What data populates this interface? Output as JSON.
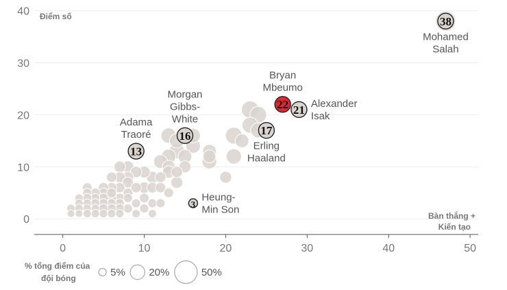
{
  "chart_data": {
    "type": "scatter",
    "ylabel": "Điểm số",
    "xlabel_line1": "Bàn thắng +",
    "xlabel_line2": "Kiến tạo",
    "xlim": [
      -3.5,
      51
    ],
    "ylim": [
      -3,
      41
    ],
    "x_ticks": [
      0,
      10,
      20,
      30,
      40,
      50
    ],
    "y_ticks": [
      0,
      10,
      20,
      30,
      40
    ],
    "colors": {
      "bubble_fill": "#d9d4ce",
      "bubble_stroke": "#ffffff",
      "highlight_red": "#e0262f",
      "label_text": "#555555",
      "axis_text": "#777777",
      "axis_line": "#555555",
      "grid": "#eeeeee"
    },
    "size_legend": {
      "title_line1": "% tổng điểm của",
      "title_line2": "đội bóng",
      "items": [
        {
          "label": "5%",
          "share": 5
        },
        {
          "label": "20%",
          "share": 20
        },
        {
          "label": "50%",
          "share": 50
        }
      ]
    },
    "highlighted": [
      {
        "name": "Mohamed Salah",
        "name_lines": [
          "Mohamed",
          "Salah"
        ],
        "x": 47,
        "y": 38,
        "score": "38",
        "share": 33,
        "color": "#d9d4ce",
        "label_pos": "below"
      },
      {
        "name": "Bryan Mbeumo",
        "name_lines": [
          "Bryan",
          "Mbeumo"
        ],
        "x": 27,
        "y": 22,
        "score": "22",
        "share": 28,
        "color": "#e0262f",
        "label_pos": "above"
      },
      {
        "name": "Alexander Isak",
        "name_lines": [
          "Alexander",
          "Isak"
        ],
        "x": 29,
        "y": 21,
        "score": "21",
        "share": 24,
        "color": "#d9d4ce",
        "label_pos": "right"
      },
      {
        "name": "Erling Haaland",
        "name_lines": [
          "Erling",
          "Haaland"
        ],
        "x": 25,
        "y": 17,
        "score": "17",
        "share": 20,
        "color": "#d9d4ce",
        "label_pos": "below"
      },
      {
        "name": "Morgan Gibbs-White",
        "name_lines": [
          "Morgan",
          "Gibbs-",
          "White"
        ],
        "x": 15,
        "y": 16,
        "score": "16",
        "share": 20,
        "color": "#d9d4ce",
        "label_pos": "above"
      },
      {
        "name": "Adama Traoré",
        "name_lines": [
          "Adama",
          "Traoré"
        ],
        "x": 9,
        "y": 13,
        "score": "13",
        "share": 20,
        "color": "#d9d4ce",
        "label_pos": "above"
      },
      {
        "name": "Heung-Min Son",
        "name_lines": [
          "Heung-",
          "Min Son"
        ],
        "x": 16,
        "y": 3,
        "score": "3",
        "share": 6,
        "color": "#d9d4ce",
        "label_pos": "right"
      }
    ],
    "others": [
      {
        "x": 47,
        "y": 38,
        "share": 33
      },
      {
        "x": 23,
        "y": 21,
        "share": 24
      },
      {
        "x": 24,
        "y": 20,
        "share": 22
      },
      {
        "x": 23,
        "y": 18,
        "share": 20
      },
      {
        "x": 24,
        "y": 17,
        "share": 18
      },
      {
        "x": 21,
        "y": 16,
        "share": 22
      },
      {
        "x": 21,
        "y": 12,
        "share": 18
      },
      {
        "x": 22,
        "y": 15,
        "share": 14
      },
      {
        "x": 20,
        "y": 8,
        "share": 10
      },
      {
        "x": 13,
        "y": 16,
        "share": 18
      },
      {
        "x": 14,
        "y": 15,
        "share": 16
      },
      {
        "x": 14,
        "y": 13,
        "share": 18
      },
      {
        "x": 16,
        "y": 14,
        "share": 16
      },
      {
        "x": 15,
        "y": 12,
        "share": 14
      },
      {
        "x": 16,
        "y": 16,
        "share": 16
      },
      {
        "x": 18,
        "y": 13,
        "share": 14
      },
      {
        "x": 18,
        "y": 11,
        "share": 16
      },
      {
        "x": 18,
        "y": 12,
        "share": 12
      },
      {
        "x": 13,
        "y": 12,
        "share": 16
      },
      {
        "x": 12,
        "y": 11,
        "share": 14
      },
      {
        "x": 13,
        "y": 10,
        "share": 12
      },
      {
        "x": 15,
        "y": 10,
        "share": 10
      },
      {
        "x": 14,
        "y": 9,
        "share": 9
      },
      {
        "x": 13,
        "y": 9,
        "share": 11
      },
      {
        "x": 12,
        "y": 8,
        "share": 8
      },
      {
        "x": 11,
        "y": 8,
        "share": 10
      },
      {
        "x": 10,
        "y": 9,
        "share": 10
      },
      {
        "x": 9,
        "y": 9,
        "share": 9
      },
      {
        "x": 11,
        "y": 6,
        "share": 8
      },
      {
        "x": 10,
        "y": 6,
        "share": 9
      },
      {
        "x": 12,
        "y": 6,
        "share": 7
      },
      {
        "x": 14,
        "y": 7,
        "share": 10
      },
      {
        "x": 13,
        "y": 5,
        "share": 6
      },
      {
        "x": 8,
        "y": 10,
        "share": 10
      },
      {
        "x": 7,
        "y": 10,
        "share": 9
      },
      {
        "x": 8,
        "y": 8,
        "share": 9
      },
      {
        "x": 7,
        "y": 8,
        "share": 8
      },
      {
        "x": 8,
        "y": 7,
        "share": 8
      },
      {
        "x": 7,
        "y": 6,
        "share": 7
      },
      {
        "x": 6,
        "y": 8,
        "share": 7
      },
      {
        "x": 6,
        "y": 6,
        "share": 7
      },
      {
        "x": 8,
        "y": 5,
        "share": 6
      },
      {
        "x": 9,
        "y": 6,
        "share": 7
      },
      {
        "x": 10,
        "y": 4,
        "share": 6
      },
      {
        "x": 11,
        "y": 3,
        "share": 5
      },
      {
        "x": 12,
        "y": 3,
        "share": 5
      },
      {
        "x": 10,
        "y": 2,
        "share": 5
      },
      {
        "x": 9,
        "y": 3,
        "share": 5
      },
      {
        "x": 8,
        "y": 4,
        "share": 5
      },
      {
        "x": 8,
        "y": 2,
        "share": 5
      },
      {
        "x": 7,
        "y": 4,
        "share": 6
      },
      {
        "x": 7,
        "y": 3,
        "share": 5
      },
      {
        "x": 7,
        "y": 2,
        "share": 5
      },
      {
        "x": 6,
        "y": 4,
        "share": 6
      },
      {
        "x": 6,
        "y": 3,
        "share": 5
      },
      {
        "x": 6,
        "y": 2,
        "share": 5
      },
      {
        "x": 5,
        "y": 6,
        "share": 7
      },
      {
        "x": 5,
        "y": 5,
        "share": 6
      },
      {
        "x": 5,
        "y": 4,
        "share": 6
      },
      {
        "x": 5,
        "y": 3,
        "share": 5
      },
      {
        "x": 5,
        "y": 2,
        "share": 5
      },
      {
        "x": 5,
        "y": 1,
        "share": 4
      },
      {
        "x": 4,
        "y": 5,
        "share": 6
      },
      {
        "x": 4,
        "y": 4,
        "share": 5
      },
      {
        "x": 4,
        "y": 3,
        "share": 5
      },
      {
        "x": 4,
        "y": 2,
        "share": 4
      },
      {
        "x": 4,
        "y": 1,
        "share": 4
      },
      {
        "x": 3,
        "y": 6,
        "share": 6
      },
      {
        "x": 3,
        "y": 5,
        "share": 5
      },
      {
        "x": 3,
        "y": 4,
        "share": 5
      },
      {
        "x": 3,
        "y": 3,
        "share": 4
      },
      {
        "x": 3,
        "y": 2,
        "share": 4
      },
      {
        "x": 3,
        "y": 1,
        "share": 4
      },
      {
        "x": 2,
        "y": 4,
        "share": 4
      },
      {
        "x": 2,
        "y": 3,
        "share": 4
      },
      {
        "x": 2,
        "y": 2,
        "share": 4
      },
      {
        "x": 2,
        "y": 1,
        "share": 3
      },
      {
        "x": 1,
        "y": 2,
        "share": 4
      },
      {
        "x": 1,
        "y": 1,
        "share": 3
      },
      {
        "x": 6,
        "y": 5,
        "share": 6
      },
      {
        "x": 6,
        "y": 1,
        "share": 4
      },
      {
        "x": 7,
        "y": 1,
        "share": 4
      },
      {
        "x": 11,
        "y": 1,
        "share": 4
      },
      {
        "x": 9,
        "y": 1,
        "share": 4
      }
    ]
  }
}
